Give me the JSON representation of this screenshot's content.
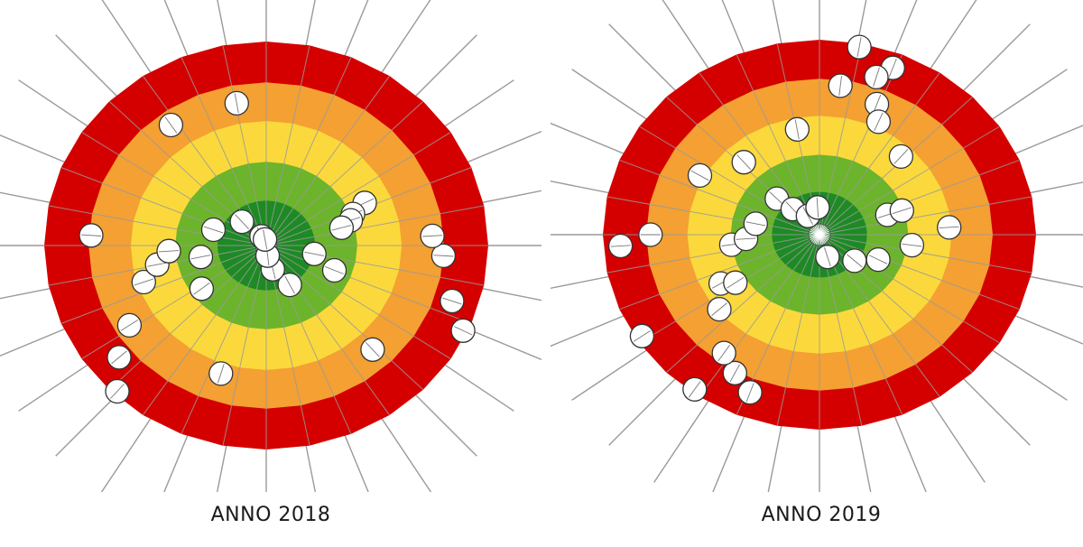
{
  "colors": {
    "outer": "#d40000",
    "orange": "#f4a033",
    "yellow": "#fbd93c",
    "lightgreen": "#6cb42c",
    "darkgreen": "#1e8a25",
    "spoke": "#9a9a9a",
    "marker_fill": "#ffffff",
    "marker_stroke": "#333333"
  },
  "chart_data": [
    {
      "type": "scatter",
      "title": "ANNO 2018",
      "markers": [
        [
          0.32,
          0.98
        ],
        [
          0.3,
          0.88
        ],
        [
          0.26,
          0.8
        ],
        [
          0.24,
          0.75
        ],
        [
          0.38,
          0.7
        ],
        [
          0.18,
          0.49
        ],
        [
          0.19,
          0.42
        ],
        [
          0.2,
          0.4
        ],
        [
          0.21,
          0.35
        ],
        [
          0.31,
          0.33
        ],
        [
          0.42,
          0.22
        ],
        [
          0.28,
          0.22
        ],
        [
          0.46,
          0.12
        ],
        [
          0.48,
          0.05
        ],
        [
          0.62,
          0.98
        ],
        [
          0.64,
          0.86
        ],
        [
          0.66,
          0.73
        ],
        [
          0.7,
          0.58
        ],
        [
          0.72,
          0.5
        ],
        [
          0.74,
          0.44
        ],
        [
          0.55,
          0.66
        ],
        [
          0.65,
          0.36
        ],
        [
          0.72,
          0.3
        ],
        [
          0.8,
          0.25
        ],
        [
          0.88,
          0.16
        ],
        [
          0.93,
          0.05
        ],
        [
          0.97,
          0.03
        ],
        [
          0.76,
          0.79
        ],
        [
          0.9,
          0.73
        ],
        [
          0.97,
          0.71
        ]
      ]
    },
    {
      "type": "scatter",
      "title": "ANNO 2019",
      "markers": [
        [
          0.03,
          0.98
        ],
        [
          0.06,
          0.92
        ],
        [
          0.05,
          0.85
        ],
        [
          0.02,
          0.77
        ],
        [
          0.06,
          0.72
        ],
        [
          0.07,
          0.64
        ],
        [
          0.12,
          0.55
        ],
        [
          0.2,
          0.33
        ],
        [
          0.2,
          0.4
        ],
        [
          0.24,
          0.6
        ],
        [
          0.27,
          0.43
        ],
        [
          0.36,
          0.21
        ],
        [
          0.32,
          0.3
        ],
        [
          0.45,
          0.12
        ],
        [
          0.6,
          0.98
        ],
        [
          0.56,
          0.87
        ],
        [
          0.58,
          0.81
        ],
        [
          0.6,
          0.75
        ],
        [
          0.64,
          0.6
        ],
        [
          0.67,
          0.52
        ],
        [
          0.66,
          0.46
        ],
        [
          0.73,
          0.41
        ],
        [
          0.74,
          0.34
        ],
        [
          0.78,
          0.3
        ],
        [
          0.87,
          0.27
        ],
        [
          0.88,
          0.18
        ],
        [
          0.92,
          0.11
        ],
        [
          0.99,
          0.14
        ],
        [
          0.66,
          0.97
        ],
        [
          0.74,
          0.92
        ],
        [
          0.75,
          0.78
        ],
        [
          0.83,
          0.63
        ],
        [
          0.88,
          0.51
        ],
        [
          0.97,
          0.55
        ]
      ]
    }
  ]
}
